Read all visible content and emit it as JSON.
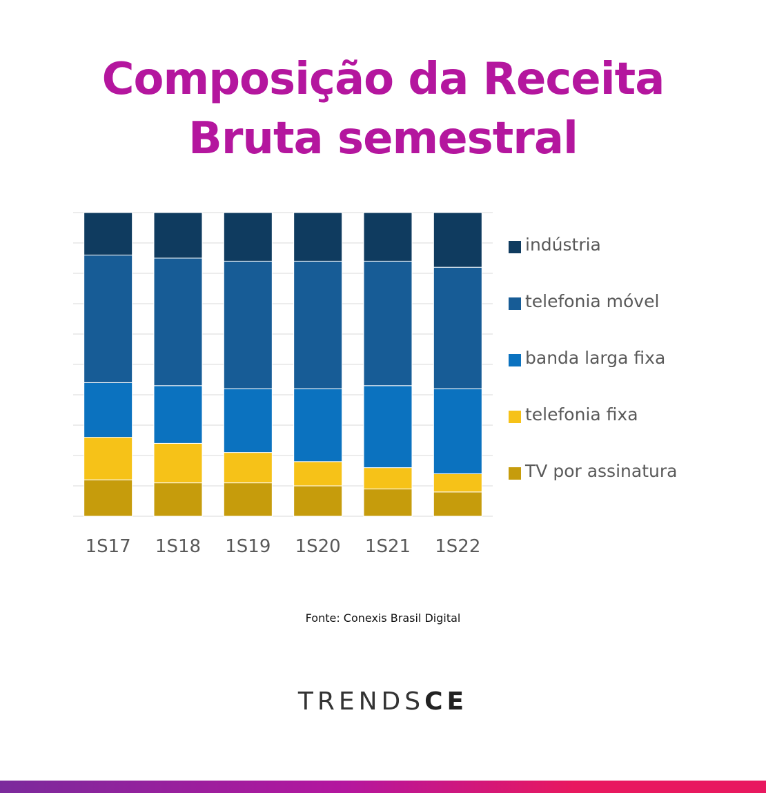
{
  "title": {
    "line1": "Composição da Receita",
    "line2": "Bruta semestral"
  },
  "source": "Fonte: Conexis Brasil Digital",
  "brand": {
    "thin": "TRENDS",
    "bold": "CE"
  },
  "colors": {
    "title": "#b4169e",
    "industria": "#0f3b5f",
    "telefonia_movel": "#175c96",
    "banda_larga_fixa": "#0b72bf",
    "telefonia_fixa": "#f6c218",
    "tv_por_assinatura": "#c69c0c"
  },
  "chart_data": {
    "type": "bar",
    "stacked": true,
    "normalized": true,
    "categories": [
      "1S17",
      "1S18",
      "1S19",
      "1S20",
      "1S21",
      "1S22"
    ],
    "ylim": [
      0,
      100
    ],
    "grid": true,
    "legend_position": "right",
    "series": [
      {
        "name": "TV por assinatura",
        "color": "#c69c0c",
        "values": [
          12,
          11,
          11,
          10,
          9,
          8
        ]
      },
      {
        "name": "telefonia fixa",
        "color": "#f6c218",
        "values": [
          14,
          13,
          10,
          8,
          7,
          6
        ]
      },
      {
        "name": "banda larga fixa",
        "color": "#0b72bf",
        "values": [
          18,
          19,
          21,
          24,
          27,
          28
        ]
      },
      {
        "name": "telefonia móvel",
        "color": "#175c96",
        "values": [
          42,
          42,
          42,
          42,
          41,
          40
        ]
      },
      {
        "name": "indústria",
        "color": "#0f3b5f",
        "values": [
          14,
          15,
          16,
          16,
          16,
          18
        ]
      }
    ]
  }
}
